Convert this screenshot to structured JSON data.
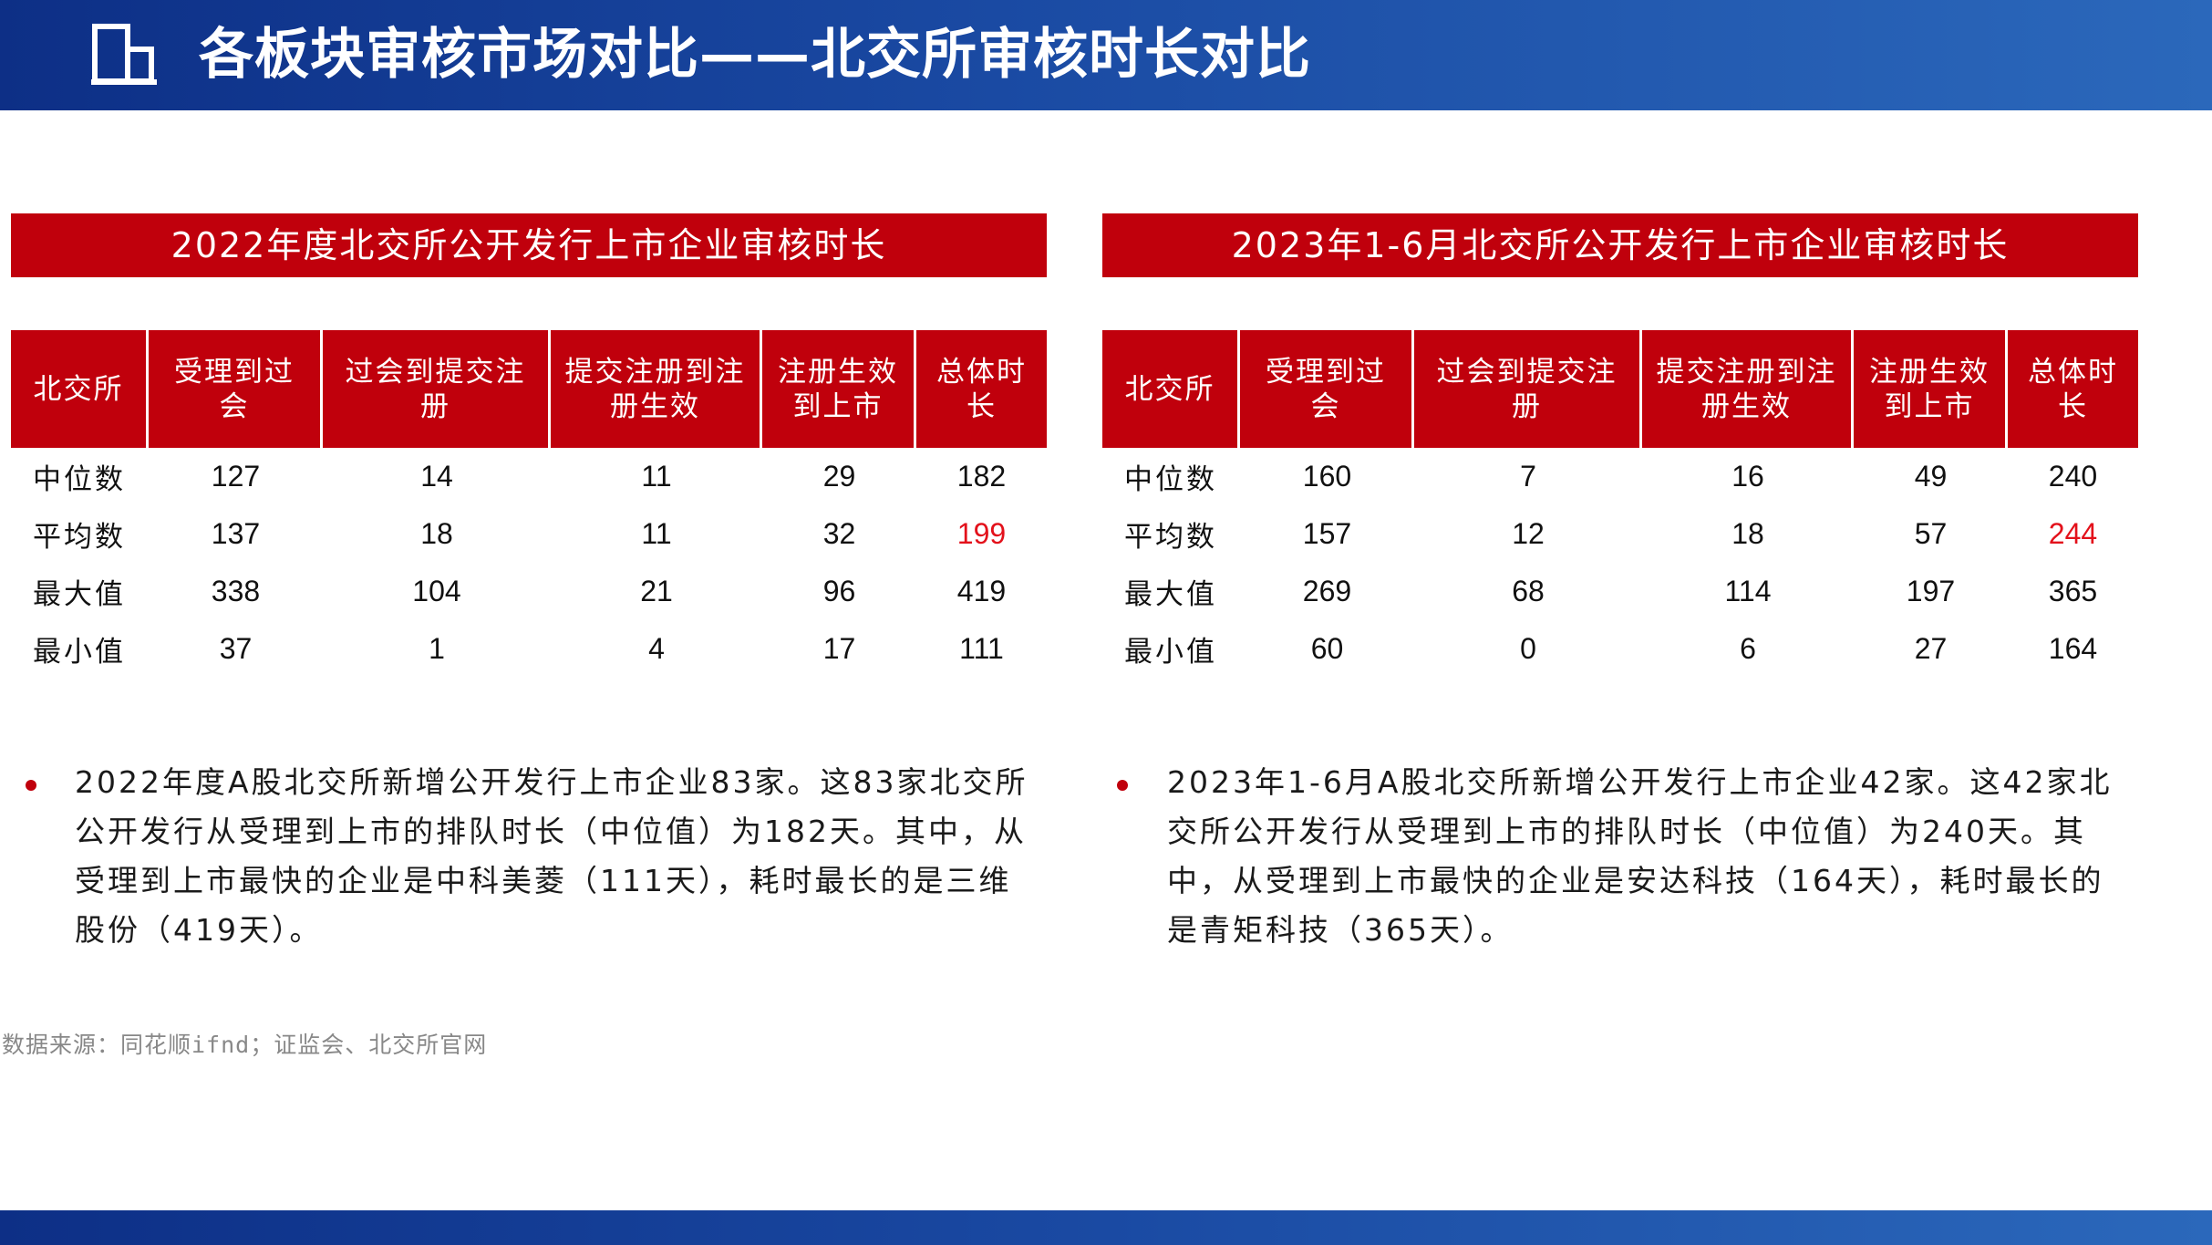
{
  "header": {
    "title": "各板块审核市场对比——北交所审核时长对比",
    "icon": "building-chart-icon"
  },
  "colors": {
    "header_blue": "#1a4aa3",
    "accent_red": "#c0000c",
    "highlight_red": "#e3111b"
  },
  "left_panel": {
    "title": "2022年度北交所公开发行上市企业审核时长",
    "columns": [
      "北交所",
      "受理到过会",
      "过会到提交注册",
      "提交注册到注册生效",
      "注册生效到上市",
      "总体时长"
    ],
    "rows": [
      {
        "label": "中位数",
        "values": [
          "127",
          "14",
          "11",
          "29",
          "182"
        ]
      },
      {
        "label": "平均数",
        "values": [
          "137",
          "18",
          "11",
          "32",
          "199"
        ]
      },
      {
        "label": "最大值",
        "values": [
          "338",
          "104",
          "21",
          "96",
          "419"
        ]
      },
      {
        "label": "最小值",
        "values": [
          "37",
          "1",
          "4",
          "17",
          "111"
        ]
      }
    ],
    "note": "2022年度A股北交所新增公开发行上市企业83家。这83家北交所公开发行从受理到上市的排队时长（中位值）为182天。其中，从受理到上市最快的企业是中科美菱（111天），耗时最长的是三维股份（419天）。"
  },
  "right_panel": {
    "title": "2023年1-6月北交所公开发行上市企业审核时长",
    "columns": [
      "北交所",
      "受理到过会",
      "过会到提交注册",
      "提交注册到注册生效",
      "注册生效到上市",
      "总体时长"
    ],
    "rows": [
      {
        "label": "中位数",
        "values": [
          "160",
          "7",
          "16",
          "49",
          "240"
        ]
      },
      {
        "label": "平均数",
        "values": [
          "157",
          "12",
          "18",
          "57",
          "244"
        ]
      },
      {
        "label": "最大值",
        "values": [
          "269",
          "68",
          "114",
          "197",
          "365"
        ]
      },
      {
        "label": "最小值",
        "values": [
          "60",
          "0",
          "6",
          "27",
          "164"
        ]
      }
    ],
    "note": "2023年1-6月A股北交所新增公开发行上市企业42家。这42家北交所公开发行从受理到上市的排队时长（中位值）为240天。其中，从受理到上市最快的企业是安达科技（164天），耗时最长的是青矩科技（365天）。"
  },
  "source": "数据来源：同花顺ifnd；证监会、北交所官网"
}
